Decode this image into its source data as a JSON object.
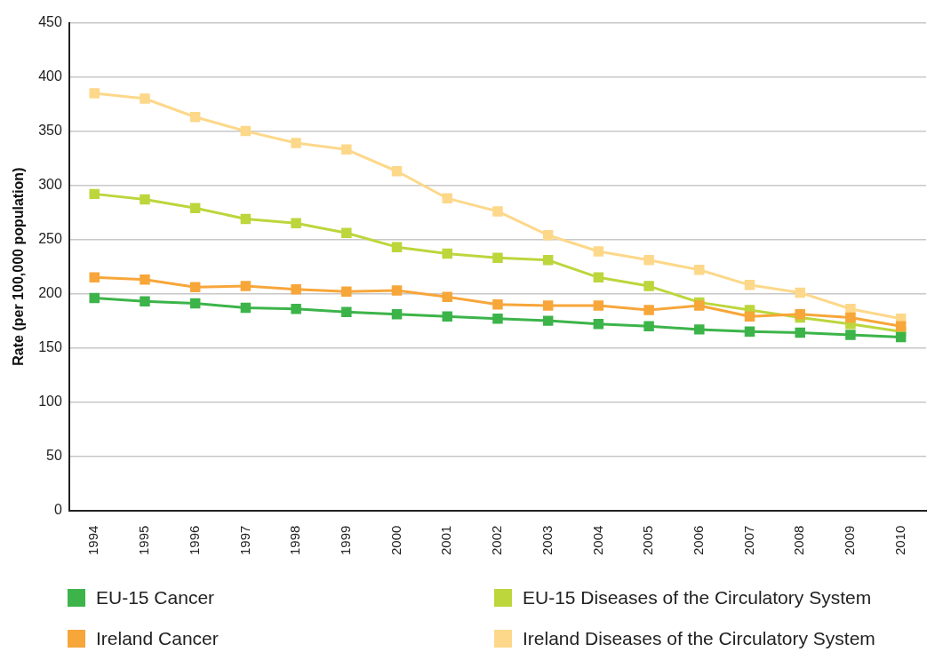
{
  "chart_data": {
    "type": "line",
    "ylabel": "Rate (per 100,000 population)",
    "categories": [
      "1994",
      "1995",
      "1996",
      "1997",
      "1998",
      "1999",
      "2000",
      "2001",
      "2002",
      "2003",
      "2004",
      "2005",
      "2006",
      "2007",
      "2008",
      "2009",
      "2010"
    ],
    "series": [
      {
        "name": "EU-15 Cancer",
        "color": "#3cb44a",
        "values": [
          196,
          193,
          191,
          187,
          186,
          183,
          181,
          179,
          177,
          175,
          172,
          170,
          167,
          165,
          164,
          162,
          160
        ]
      },
      {
        "name": "Ireland Cancer",
        "color": "#f7a63a",
        "values": [
          215,
          213,
          206,
          207,
          204,
          202,
          203,
          197,
          190,
          189,
          189,
          185,
          189,
          179,
          181,
          178,
          170
        ]
      },
      {
        "name": "EU-15 Diseases of the Circulatory System",
        "color": "#bcd63c",
        "values": [
          292,
          287,
          279,
          269,
          265,
          256,
          243,
          237,
          233,
          231,
          215,
          207,
          192,
          185,
          178,
          172,
          165
        ]
      },
      {
        "name": "Ireland Diseases of the Circulatory System",
        "color": "#fdd88a",
        "values": [
          385,
          380,
          363,
          350,
          339,
          333,
          313,
          288,
          276,
          254,
          239,
          231,
          222,
          208,
          201,
          186,
          177
        ]
      }
    ],
    "ylim": [
      0,
      450
    ],
    "yticks": [
      0,
      50,
      100,
      150,
      200,
      250,
      300,
      350,
      400,
      450
    ],
    "grid": "y",
    "legend": "bottom",
    "marker": "square",
    "line_style": "solid"
  }
}
